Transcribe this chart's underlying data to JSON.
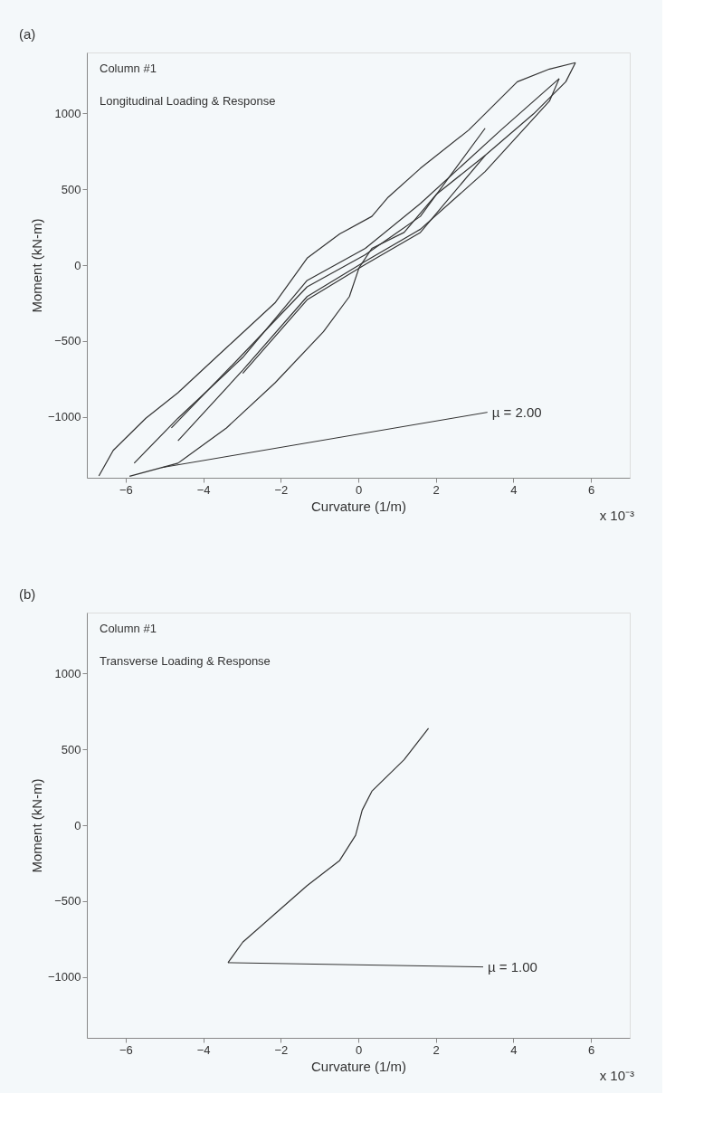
{
  "chart_data": [
    {
      "type": "line",
      "title": "Column #1",
      "subtitle": "Longitudinal Loading & Response",
      "xlabel": "Curvature (1/m)",
      "ylabel": "Moment (kN-m)",
      "xlim": [
        -7,
        7
      ],
      "ylim": [
        -1400,
        1400
      ],
      "xticks": [
        -6,
        -4,
        -2,
        0,
        2,
        4,
        6
      ],
      "yticks": [
        -1000,
        -500,
        0,
        500,
        1000
      ],
      "grid": false,
      "line_style": "solid",
      "marker": "none",
      "series": [
        {
          "color": "#333333",
          "x": [
            -6.69,
            -6.32,
            -5.48,
            -4.65,
            -3.4,
            -2.15,
            -1.32,
            -0.48,
            0.35,
            0.77,
            1.6,
            2.85,
            4.1,
            4.93,
            5.6
          ],
          "values": [
            -1388,
            -1220,
            -1008,
            -840,
            -544,
            -249,
            46,
            205,
            321,
            447,
            637,
            890,
            1207,
            1291,
            1333
          ]
        },
        {
          "color": "#333333",
          "x": [
            5.6,
            5.35,
            4.52,
            3.27,
            2.02,
            1.18,
            0.35,
            0.02,
            -0.23,
            -0.9,
            -2.15,
            -3.4,
            -4.65,
            -5.9
          ],
          "values": [
            1333,
            1207,
            996,
            722,
            468,
            215,
            110,
            -17,
            -207,
            -439,
            -776,
            -1072,
            -1304,
            -1390
          ]
        },
        {
          "color": "#333333",
          "x": [
            -5.78,
            -4.65,
            -2.98,
            -1.32,
            0.18,
            1.6,
            3.68,
            5.18
          ],
          "values": [
            -1304,
            -1008,
            -608,
            -101,
            110,
            405,
            890,
            1228
          ]
        },
        {
          "color": "#333333",
          "x": [
            5.18,
            4.93,
            3.27,
            1.6,
            0.18,
            -1.32,
            -2.98,
            -4.65
          ],
          "values": [
            1228,
            1080,
            616,
            236,
            25,
            -207,
            -692,
            -1156
          ]
        },
        {
          "color": "#333333",
          "x": [
            -4.82,
            -2.98,
            -1.32,
            0.18,
            1.6,
            3.27
          ],
          "values": [
            -1072,
            -587,
            -143,
            68,
            321,
            901
          ]
        },
        {
          "color": "#333333",
          "x": [
            3.27,
            1.6,
            0.18,
            -1.32,
            -2.98
          ],
          "values": [
            722,
            215,
            4,
            -228,
            -713
          ]
        }
      ],
      "annotations": [
        "(a)",
        "x 10⁻³",
        {
          "text": "µ = 2.00",
          "x": -5.07,
          "y": -1333
        }
      ]
    },
    {
      "type": "line",
      "title": "Column #1",
      "subtitle": "Transverse Loading & Response",
      "xlabel": "Curvature (1/m)",
      "ylabel": "Moment (kN-m)",
      "xlim": [
        -7,
        7
      ],
      "ylim": [
        -1400,
        1400
      ],
      "xticks": [
        -6,
        -4,
        -2,
        0,
        2,
        4,
        6
      ],
      "yticks": [
        -1000,
        -500,
        0,
        500,
        1000
      ],
      "grid": false,
      "line_style": "solid",
      "marker": "none",
      "series": [
        {
          "color": "#333333",
          "x": [
            1.81,
            1.18,
            0.35,
            0.1,
            -0.07,
            -0.48,
            -1.32,
            -2.15,
            -2.98,
            -3.36
          ],
          "values": [
            638,
            431,
            224,
            99,
            -66,
            -232,
            -398,
            -584,
            -770,
            -905
          ]
        }
      ],
      "annotations": [
        "(b)",
        "x 10⁻³",
        {
          "text": "µ = 1.00",
          "x": -3.36,
          "y": -905
        }
      ]
    }
  ]
}
